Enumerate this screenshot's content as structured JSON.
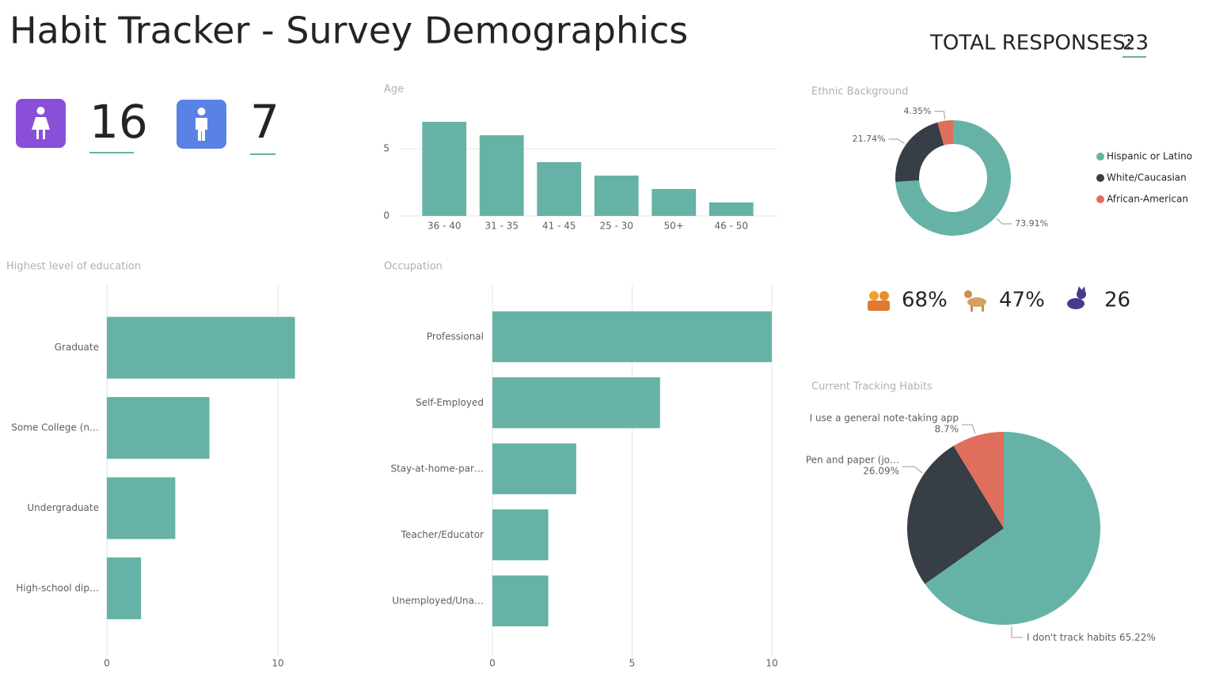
{
  "header": {
    "title": "Habit Tracker - Survey Demographics",
    "total_label": "TOTAL RESPONSES:",
    "total_value": 23
  },
  "gender": [
    {
      "count": 16
    },
    {
      "count": 7
    }
  ],
  "stats": [
    "68%",
    "47%",
    "26"
  ],
  "chart_data": [
    {
      "type": "bar",
      "title": "Age",
      "categories": [
        "36 - 40",
        "31 - 35",
        "41 - 45",
        "25 - 30",
        "50+",
        "46 - 50"
      ],
      "values": [
        7,
        6,
        4,
        3,
        2,
        1
      ],
      "color": "#66b2a6",
      "ylim": [
        0,
        7
      ],
      "yticks": [
        0,
        5
      ],
      "grid": true
    },
    {
      "type": "donut",
      "title": "Ethnic Background",
      "categories": [
        "Hispanic or Latino",
        "White/Caucasian",
        "African-American"
      ],
      "values": [
        73.91,
        21.74,
        4.35
      ],
      "value_labels": [
        "73.91%",
        "21.74%",
        "4.35%"
      ],
      "colors": [
        "#66b2a6",
        "#373e45",
        "#e06e5c"
      ],
      "legend": "right"
    },
    {
      "type": "bar",
      "horizontal": true,
      "title": "Highest level of education",
      "categories": [
        "Graduate",
        "Some College (n…",
        "Undergraduate",
        "High-school dip…"
      ],
      "values": [
        11,
        6,
        4,
        2
      ],
      "color": "#66b2a6",
      "xlim": [
        0,
        11
      ],
      "xticks": [
        0,
        10
      ],
      "grid": true
    },
    {
      "type": "bar",
      "horizontal": true,
      "title": "Occupation",
      "categories": [
        "Professional",
        "Self-Employed",
        "Stay-at-home-par…",
        "Teacher/Educator",
        "Unemployed/Una…"
      ],
      "values": [
        10,
        6,
        3,
        2,
        2
      ],
      "color": "#66b2a6",
      "xlim": [
        0,
        10
      ],
      "xticks": [
        0,
        5,
        10
      ],
      "grid": true
    },
    {
      "type": "pie",
      "title": "Current Tracking Habits",
      "categories": [
        "I don't track habits",
        "Pen and paper (jo…",
        "I use a general note-taking app"
      ],
      "values": [
        65.22,
        26.09,
        8.7
      ],
      "value_labels": [
        "65.22%",
        "26.09%",
        "8.7%"
      ],
      "colors": [
        "#66b2a6",
        "#373e45",
        "#e06e5c"
      ]
    }
  ]
}
